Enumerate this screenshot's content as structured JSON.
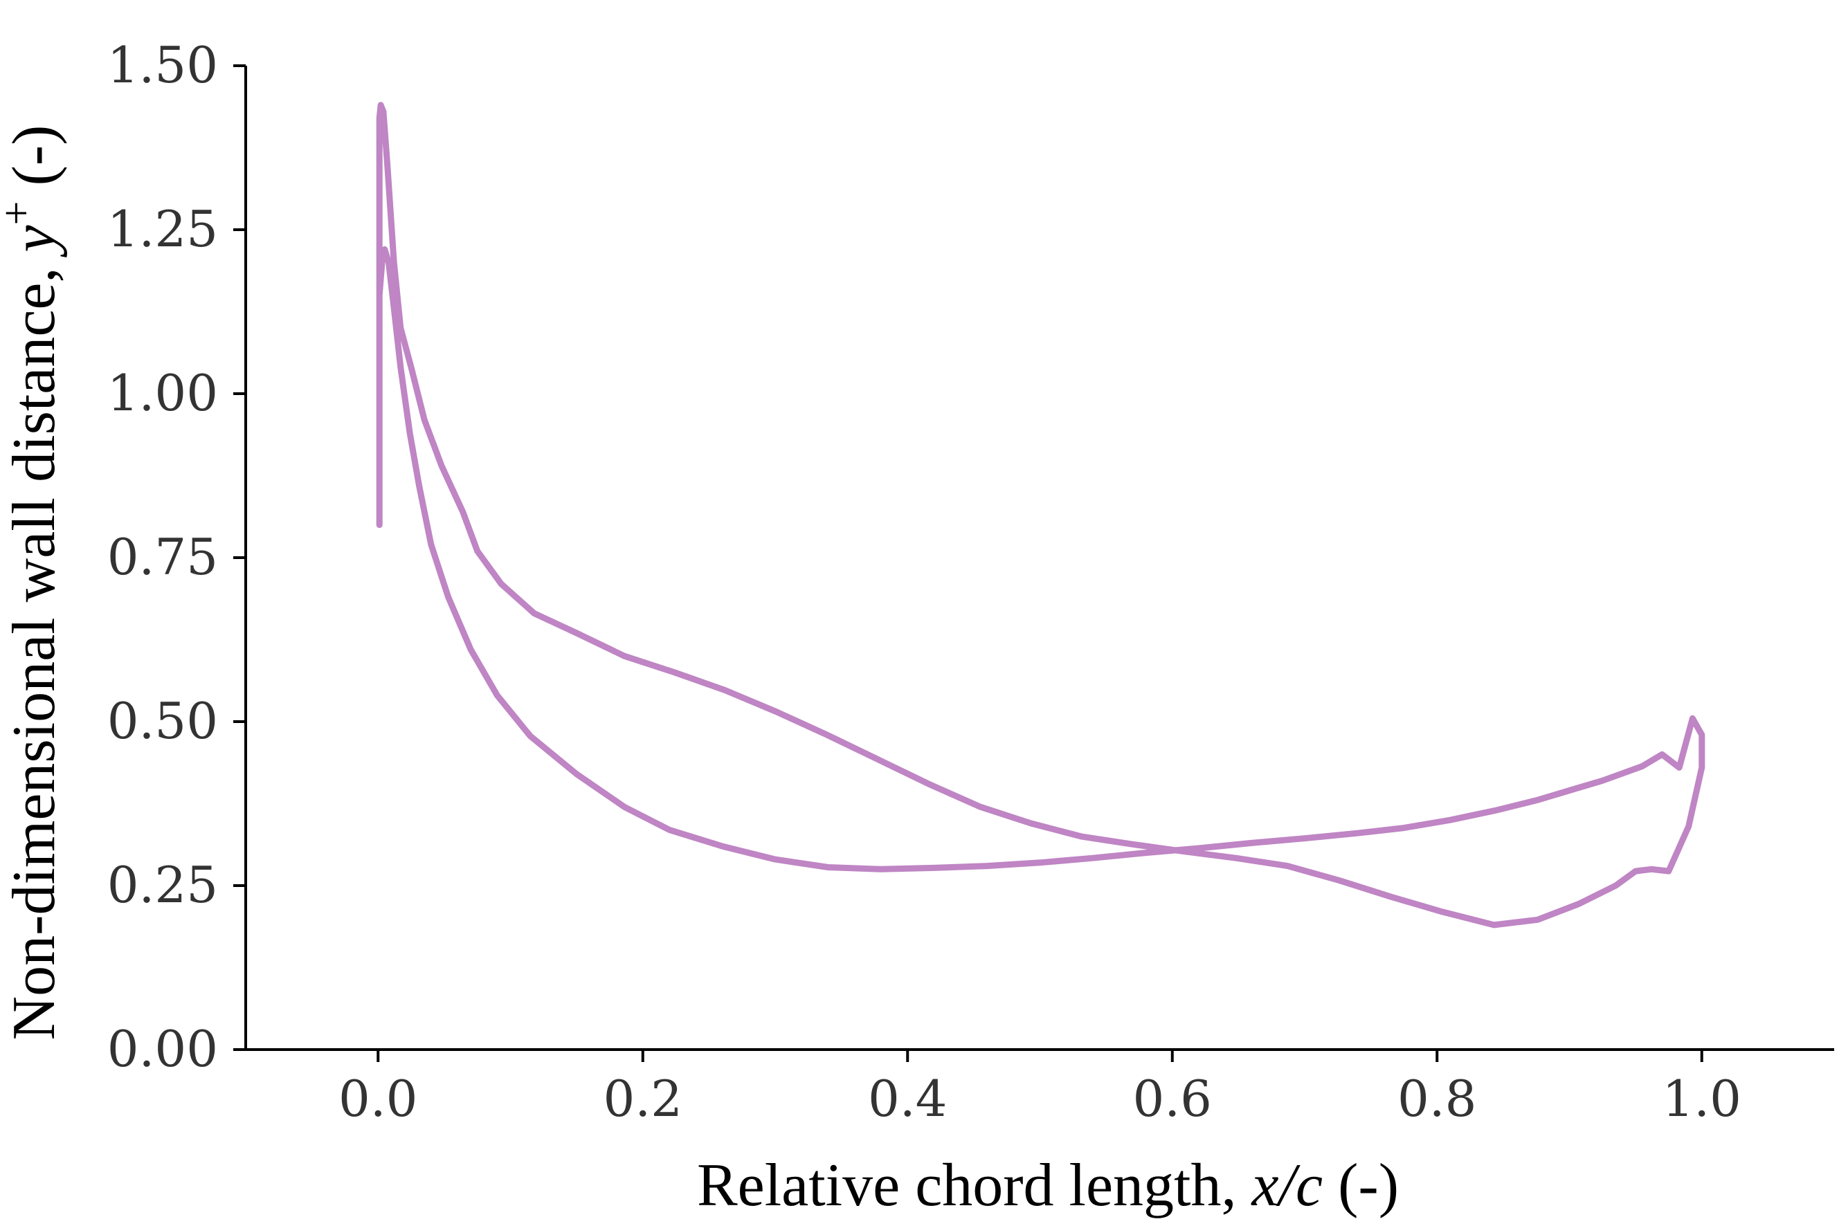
{
  "colors": {
    "series": "#bf85c4",
    "axis": "#000000",
    "tick_text": "#333333",
    "background": "#ffffff"
  },
  "chart_data": {
    "type": "line",
    "title": "",
    "xlabel": {
      "prefix": "Relative chord length, ",
      "var": "x/c",
      "suffix": " (-)"
    },
    "ylabel": {
      "prefix": "Non-dimensional wall distance, ",
      "var": "y",
      "sup": "+",
      "suffix": " (-)"
    },
    "xlim": [
      -0.1,
      1.1
    ],
    "ylim": [
      0.0,
      1.5
    ],
    "xticks": [
      0.0,
      0.2,
      0.4,
      0.6,
      0.8,
      1.0
    ],
    "xtick_labels": [
      "0.0",
      "0.2",
      "0.4",
      "0.6",
      "0.8",
      "1.0"
    ],
    "yticks": [
      0.0,
      0.25,
      0.5,
      0.75,
      1.0,
      1.25,
      1.5
    ],
    "ytick_labels": [
      "0.00",
      "0.25",
      "0.50",
      "0.75",
      "1.00",
      "1.25",
      "1.50"
    ],
    "grid": false,
    "legend": "none",
    "series": [
      {
        "color": "#bf85c4",
        "x": [
          0.001,
          0.001,
          0.002,
          0.004,
          0.007,
          0.012,
          0.017,
          0.025,
          0.035,
          0.048,
          0.064,
          0.075,
          0.093,
          0.118,
          0.15,
          0.186,
          0.224,
          0.262,
          0.301,
          0.339,
          0.378,
          0.416,
          0.455,
          0.493,
          0.531,
          0.57,
          0.609,
          0.648,
          0.687,
          0.726,
          0.765,
          0.804,
          0.843,
          0.876,
          0.907,
          0.935,
          0.95,
          0.962,
          0.975,
          0.99,
          1.0,
          1.0,
          0.993,
          0.983,
          0.97,
          0.955,
          0.925,
          0.9,
          0.875,
          0.845,
          0.81,
          0.775,
          0.74,
          0.7,
          0.66,
          0.62,
          0.58,
          0.54,
          0.5,
          0.46,
          0.42,
          0.38,
          0.34,
          0.3,
          0.26,
          0.22,
          0.186,
          0.15,
          0.115,
          0.09,
          0.07,
          0.053,
          0.04,
          0.031,
          0.024,
          0.017,
          0.012,
          0.008,
          0.005,
          0.003,
          0.001
        ],
        "y": [
          0.8,
          1.42,
          1.44,
          1.43,
          1.35,
          1.2,
          1.1,
          1.04,
          0.96,
          0.89,
          0.82,
          0.76,
          0.71,
          0.665,
          0.635,
          0.6,
          0.575,
          0.548,
          0.515,
          0.48,
          0.442,
          0.405,
          0.37,
          0.345,
          0.325,
          0.313,
          0.302,
          0.292,
          0.28,
          0.258,
          0.233,
          0.21,
          0.19,
          0.198,
          0.222,
          0.25,
          0.272,
          0.275,
          0.272,
          0.34,
          0.43,
          0.48,
          0.505,
          0.43,
          0.45,
          0.432,
          0.41,
          0.395,
          0.38,
          0.365,
          0.35,
          0.338,
          0.33,
          0.322,
          0.315,
          0.307,
          0.3,
          0.292,
          0.285,
          0.28,
          0.277,
          0.275,
          0.278,
          0.29,
          0.31,
          0.335,
          0.37,
          0.42,
          0.478,
          0.54,
          0.61,
          0.69,
          0.77,
          0.86,
          0.94,
          1.04,
          1.13,
          1.2,
          1.22,
          1.2,
          1.15
        ]
      }
    ]
  }
}
